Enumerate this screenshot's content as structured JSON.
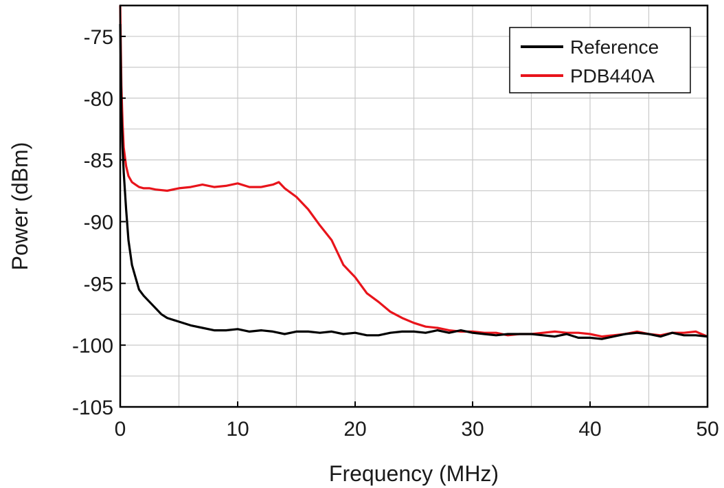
{
  "chart_data": {
    "type": "line",
    "title": "",
    "xlabel": "Frequency (MHz)",
    "ylabel": "Power (dBm)",
    "xlim": [
      0,
      50
    ],
    "ylim": [
      -105,
      -72.5
    ],
    "xticks": [
      0,
      10,
      20,
      30,
      40,
      50
    ],
    "xtick_labels": [
      "0",
      "10",
      "20",
      "30",
      "40",
      "50"
    ],
    "yticks": [
      -105,
      -100,
      -95,
      -90,
      -85,
      -80,
      -75
    ],
    "ytick_labels": [
      "-105",
      "-100",
      "-95",
      "-90",
      "-85",
      "-80",
      "-75"
    ],
    "x_minor_step": 5,
    "y_minor_step": 2.5,
    "grid": true,
    "legend_position": "top-right",
    "series": [
      {
        "name": "Reference",
        "color": "#000000",
        "x": [
          0,
          0.1,
          0.2,
          0.3,
          0.5,
          0.7,
          1.0,
          1.3,
          1.6,
          2.0,
          2.5,
          3.0,
          3.5,
          4.0,
          5.0,
          6.0,
          7.0,
          8.0,
          9.0,
          10.0,
          11.0,
          12.0,
          13.0,
          14.0,
          15.0,
          16.0,
          17.0,
          18.0,
          19.0,
          20.0,
          21.0,
          22.0,
          23.0,
          24.0,
          25.0,
          26.0,
          27.0,
          28.0,
          29.0,
          30.0,
          31.0,
          32.0,
          33.0,
          34.0,
          35.0,
          36.0,
          37.0,
          38.0,
          39.0,
          40.0,
          41.0,
          42.0,
          43.0,
          44.0,
          45.0,
          46.0,
          47.0,
          48.0,
          49.0,
          50.0
        ],
        "values": [
          -74,
          -81,
          -84,
          -86,
          -89,
          -91.5,
          -93.5,
          -94.5,
          -95.5,
          -96,
          -96.5,
          -97,
          -97.5,
          -97.8,
          -98.1,
          -98.4,
          -98.6,
          -98.8,
          -98.8,
          -98.7,
          -98.9,
          -98.8,
          -98.9,
          -99.1,
          -98.9,
          -98.9,
          -99.0,
          -98.9,
          -99.1,
          -99.0,
          -99.2,
          -99.2,
          -99.0,
          -98.9,
          -98.9,
          -99.0,
          -98.8,
          -99.0,
          -98.8,
          -99.0,
          -99.1,
          -99.2,
          -99.1,
          -99.1,
          -99.1,
          -99.2,
          -99.3,
          -99.1,
          -99.4,
          -99.4,
          -99.5,
          -99.3,
          -99.1,
          -99.0,
          -99.1,
          -99.3,
          -99.0,
          -99.2,
          -99.2,
          -99.3
        ]
      },
      {
        "name": "PDB440A",
        "color": "#e8141b",
        "x": [
          0,
          0.1,
          0.2,
          0.3,
          0.5,
          0.7,
          1.0,
          1.3,
          1.6,
          2.0,
          2.5,
          3.0,
          4.0,
          5.0,
          6.0,
          7.0,
          8.0,
          9.0,
          10.0,
          11.0,
          12.0,
          13.0,
          13.5,
          14.0,
          15.0,
          16.0,
          17.0,
          18.0,
          19.0,
          20.0,
          21.0,
          22.0,
          23.0,
          24.0,
          25.0,
          26.0,
          27.0,
          28.0,
          29.0,
          30.0,
          31.0,
          32.0,
          33.0,
          34.0,
          35.0,
          36.0,
          37.0,
          38.0,
          39.0,
          40.0,
          41.0,
          42.0,
          43.0,
          44.0,
          45.0,
          46.0,
          47.0,
          48.0,
          49.0,
          50.0
        ],
        "values": [
          -72.5,
          -79,
          -82,
          -84,
          -85.5,
          -86.3,
          -86.8,
          -87.0,
          -87.2,
          -87.3,
          -87.3,
          -87.4,
          -87.5,
          -87.3,
          -87.2,
          -87.0,
          -87.2,
          -87.1,
          -86.9,
          -87.2,
          -87.2,
          -87.0,
          -86.8,
          -87.3,
          -88.0,
          -89.0,
          -90.3,
          -91.5,
          -93.5,
          -94.5,
          -95.8,
          -96.5,
          -97.3,
          -97.8,
          -98.2,
          -98.5,
          -98.6,
          -98.8,
          -98.9,
          -98.9,
          -99.0,
          -99.0,
          -99.2,
          -99.1,
          -99.1,
          -99.0,
          -98.9,
          -99.0,
          -99.0,
          -99.1,
          -99.3,
          -99.2,
          -99.1,
          -98.9,
          -99.1,
          -99.2,
          -99.0,
          -99.0,
          -98.9,
          -99.3
        ]
      }
    ]
  }
}
